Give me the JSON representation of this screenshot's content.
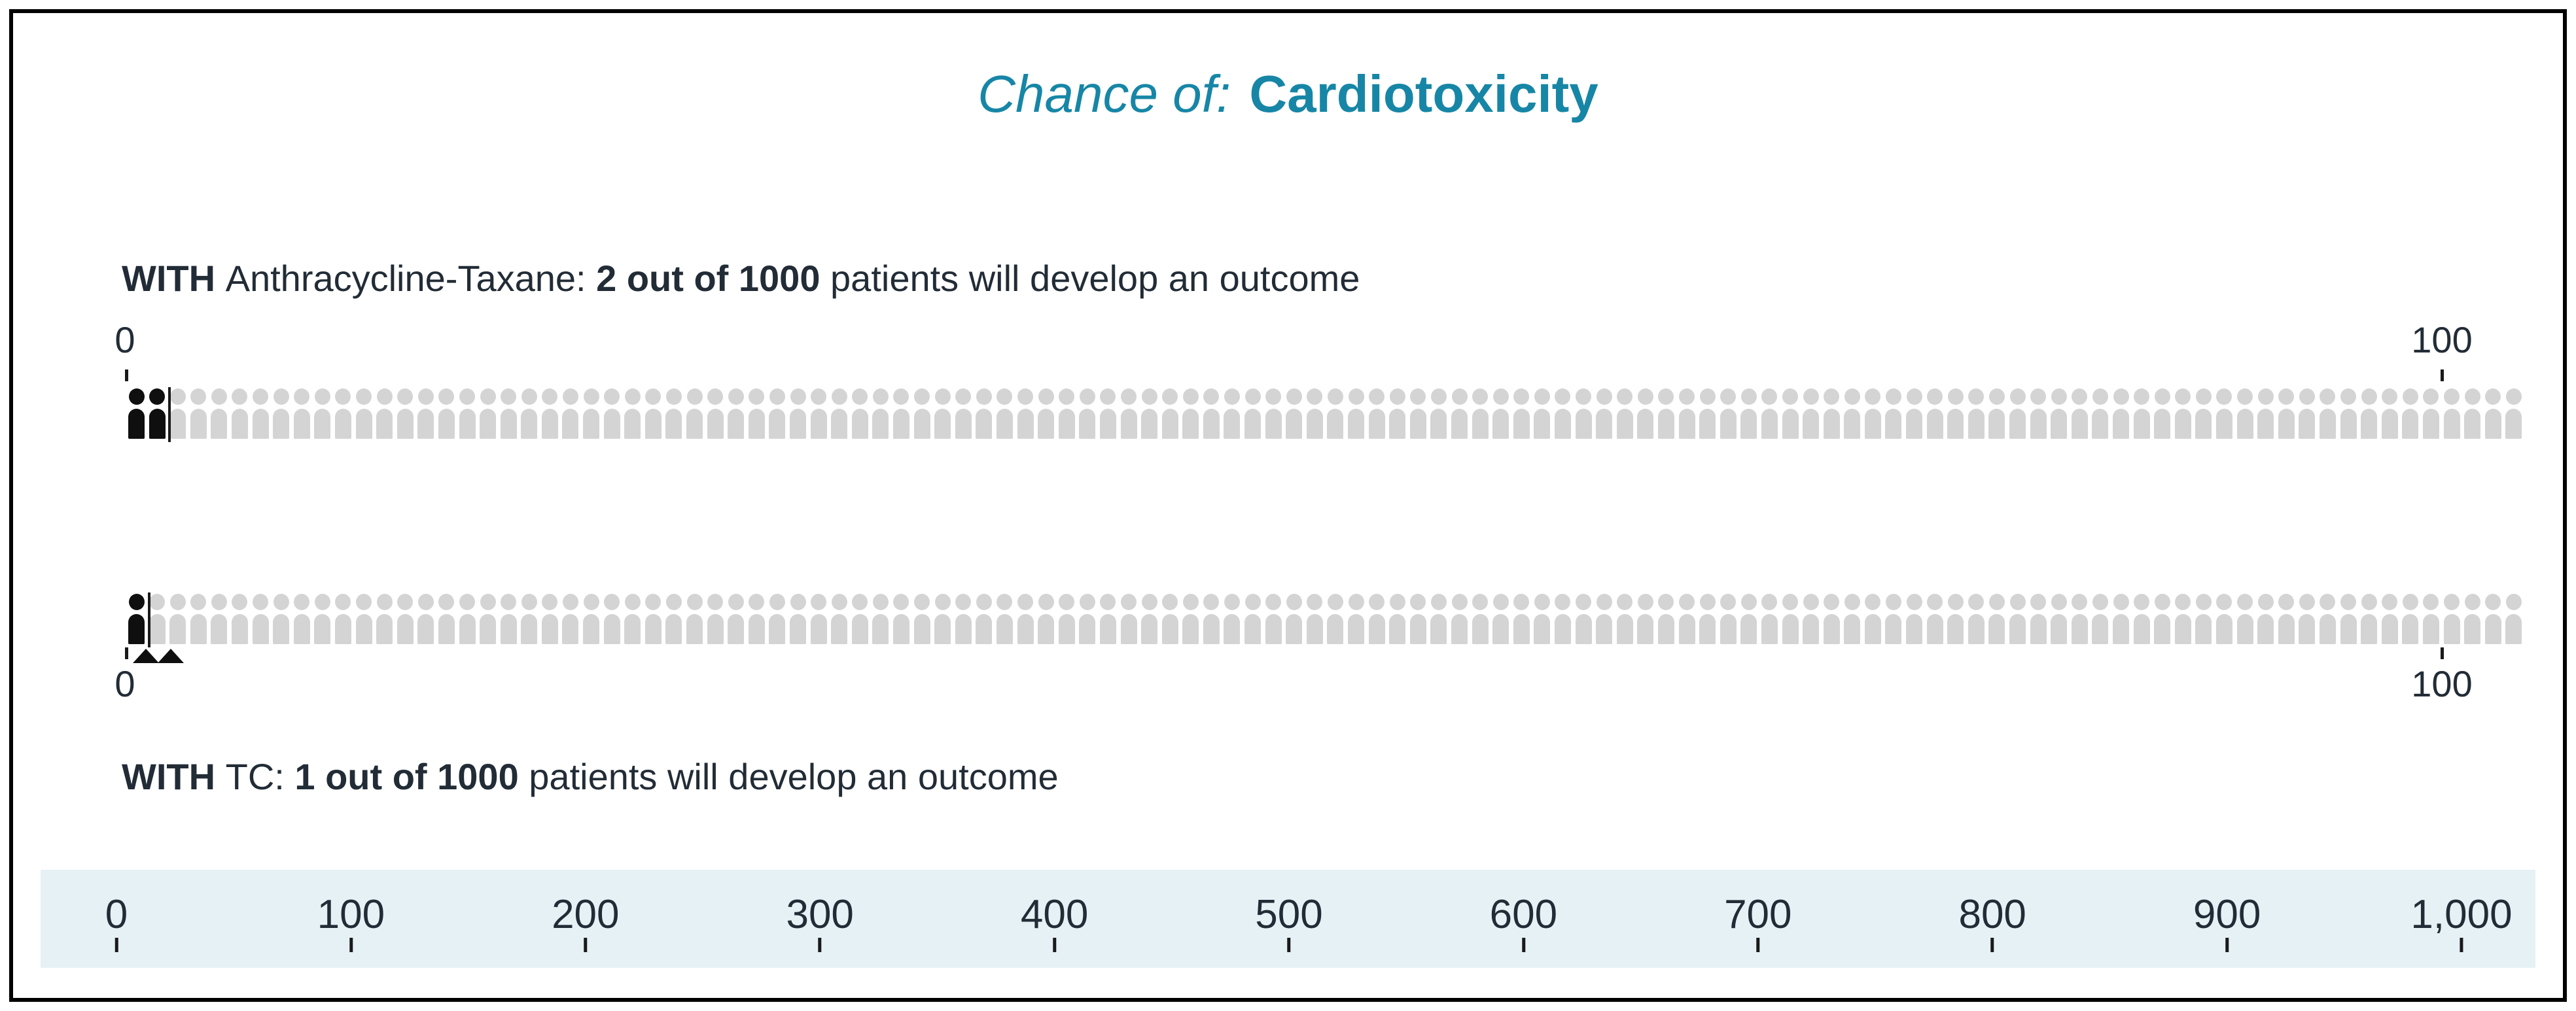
{
  "title": {
    "italic_part": "Chance of:",
    "bold_part": "Cardiotoxicity"
  },
  "rows": [
    {
      "name": "Anthracycline-Taxane",
      "label": {
        "with": "WITH ",
        "treatment": "Anthracycline-Taxane: ",
        "risk": "2 out of 1000",
        "rest": " patients will develop an outcome"
      },
      "affected_icons": 2,
      "total_icons": 116,
      "axis_start": "0",
      "axis_end": "100",
      "axis_position": "above",
      "difference_markers": 0
    },
    {
      "name": "TC",
      "label": {
        "with": "WITH ",
        "treatment": "TC: ",
        "risk": "1 out of 1000",
        "rest": " patients will develop an outcome"
      },
      "affected_icons": 1,
      "total_icons": 116,
      "axis_start": "0",
      "axis_end": "100",
      "axis_position": "below",
      "difference_markers": 2
    }
  ],
  "bottom_axis": {
    "tick_labels": [
      "0",
      "100",
      "200",
      "300",
      "400",
      "500",
      "600",
      "700",
      "800",
      "900",
      "1,000"
    ]
  },
  "colors": {
    "title_teal": "#1786a6",
    "text": "#222c36",
    "icon_gray": "#d4d4d4",
    "icon_black": "#0f0f0f",
    "band_blue": "#e6f1f6",
    "border": "#000000"
  },
  "chart_data": {
    "type": "icon-array",
    "title": "Chance of: Cardiotoxicity",
    "series": [
      {
        "name": "Anthracycline-Taxane",
        "affected": 2,
        "out_of": 1000,
        "statement": "WITH Anthracycline-Taxane: 2 out of 1000 patients will develop an outcome"
      },
      {
        "name": "TC",
        "affected": 1,
        "out_of": 1000,
        "statement": "WITH TC: 1 out of 1000 patients will develop an outcome"
      }
    ],
    "row_axis": {
      "min": 0,
      "max": 100,
      "tick_labels": [
        "0",
        "100"
      ]
    },
    "bottom_axis": {
      "min": 0,
      "max": 1000,
      "step": 100,
      "tick_labels": [
        "0",
        "100",
        "200",
        "300",
        "400",
        "500",
        "600",
        "700",
        "800",
        "900",
        "1,000"
      ]
    },
    "grid": false,
    "legend": "none"
  }
}
